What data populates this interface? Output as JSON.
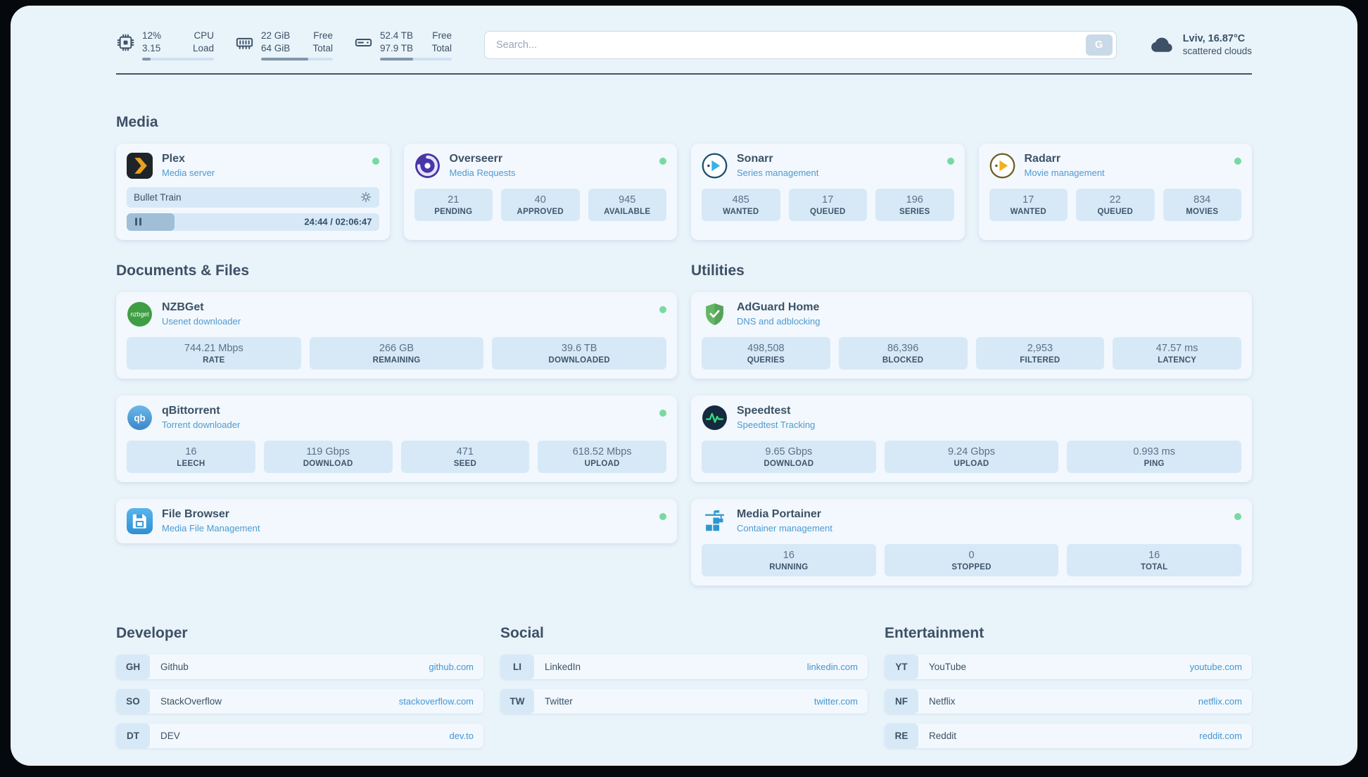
{
  "theme": {
    "background": "#e9f3fa",
    "card": "#f2f8fd",
    "tile": "#d7e9f7",
    "accent": "#4f9ad2",
    "text": "#3c5166",
    "online_dot": "#78d9a1"
  },
  "icons": {
    "cpu": "cpu-chip-icon",
    "memory": "ram-icon",
    "disk": "hard-drive-icon",
    "weather": "cloud-icon",
    "settings": "gear-icon",
    "playback": "pause-icon",
    "status": "status-dot"
  },
  "topbar": {
    "cpu": {
      "value1": "12%",
      "label1": "CPU",
      "value2": "3.15",
      "label2": "Load",
      "used_percent": 12
    },
    "memory": {
      "value1": "22 GiB",
      "label1": "Free",
      "value2": "64 GiB",
      "label2": "Total",
      "used_percent": 66
    },
    "disk": {
      "value1": "52.4 TB",
      "label1": "Free",
      "value2": "97.9 TB",
      "label2": "Total",
      "used_percent": 46
    },
    "search": {
      "placeholder": "Search...",
      "provider": "G"
    },
    "weather": {
      "location": "Lviv, 16.87°C",
      "condition": "scattered clouds"
    }
  },
  "sections": {
    "media": {
      "heading": "Media",
      "plex": {
        "title": "Plex",
        "subtitle": "Media server",
        "online": true,
        "now_playing": {
          "title": "Bullet Train",
          "time": "24:44 / 02:06:47",
          "progress_percent": 19
        }
      },
      "overseerr": {
        "title": "Overseerr",
        "subtitle": "Media Requests",
        "online": true,
        "stats": [
          {
            "value": "21",
            "label": "PENDING"
          },
          {
            "value": "40",
            "label": "APPROVED"
          },
          {
            "value": "945",
            "label": "AVAILABLE"
          }
        ]
      },
      "sonarr": {
        "title": "Sonarr",
        "subtitle": "Series management",
        "online": true,
        "stats": [
          {
            "value": "485",
            "label": "WANTED"
          },
          {
            "value": "17",
            "label": "QUEUED"
          },
          {
            "value": "196",
            "label": "SERIES"
          }
        ]
      },
      "radarr": {
        "title": "Radarr",
        "subtitle": "Movie management",
        "online": true,
        "stats": [
          {
            "value": "17",
            "label": "WANTED"
          },
          {
            "value": "22",
            "label": "QUEUED"
          },
          {
            "value": "834",
            "label": "MOVIES"
          }
        ]
      }
    },
    "documents": {
      "heading": "Documents & Files",
      "nzbget": {
        "title": "NZBGet",
        "subtitle": "Usenet downloader",
        "online": true,
        "stats": [
          {
            "value": "744.21 Mbps",
            "label": "RATE"
          },
          {
            "value": "266 GB",
            "label": "REMAINING"
          },
          {
            "value": "39.6 TB",
            "label": "DOWNLOADED"
          }
        ]
      },
      "qbittorrent": {
        "title": "qBittorrent",
        "subtitle": "Torrent downloader",
        "online": true,
        "stats": [
          {
            "value": "16",
            "label": "LEECH"
          },
          {
            "value": "119 Gbps",
            "label": "DOWNLOAD"
          },
          {
            "value": "471",
            "label": "SEED"
          },
          {
            "value": "618.52 Mbps",
            "label": "UPLOAD"
          }
        ]
      },
      "filebrowser": {
        "title": "File Browser",
        "subtitle": "Media File Management",
        "online": true
      }
    },
    "utilities": {
      "heading": "Utilities",
      "adguard": {
        "title": "AdGuard Home",
        "subtitle": "DNS and adblocking",
        "stats": [
          {
            "value": "498,508",
            "label": "QUERIES"
          },
          {
            "value": "86,396",
            "label": "BLOCKED"
          },
          {
            "value": "2,953",
            "label": "FILTERED"
          },
          {
            "value": "47.57 ms",
            "label": "LATENCY"
          }
        ]
      },
      "speedtest": {
        "title": "Speedtest",
        "subtitle": "Speedtest Tracking",
        "stats": [
          {
            "value": "9.65 Gbps",
            "label": "DOWNLOAD"
          },
          {
            "value": "9.24 Gbps",
            "label": "UPLOAD"
          },
          {
            "value": "0.993 ms",
            "label": "PING"
          }
        ]
      },
      "portainer": {
        "title": "Media Portainer",
        "subtitle": "Container management",
        "online": true,
        "stats": [
          {
            "value": "16",
            "label": "RUNNING"
          },
          {
            "value": "0",
            "label": "STOPPED"
          },
          {
            "value": "16",
            "label": "TOTAL"
          }
        ]
      }
    }
  },
  "bookmarks": [
    {
      "heading": "Developer",
      "items": [
        {
          "abbr": "GH",
          "name": "Github",
          "url": "github.com"
        },
        {
          "abbr": "SO",
          "name": "StackOverflow",
          "url": "stackoverflow.com"
        },
        {
          "abbr": "DT",
          "name": "DEV",
          "url": "dev.to"
        }
      ]
    },
    {
      "heading": "Social",
      "items": [
        {
          "abbr": "LI",
          "name": "LinkedIn",
          "url": "linkedin.com"
        },
        {
          "abbr": "TW",
          "name": "Twitter",
          "url": "twitter.com"
        }
      ]
    },
    {
      "heading": "Entertainment",
      "items": [
        {
          "abbr": "YT",
          "name": "YouTube",
          "url": "youtube.com"
        },
        {
          "abbr": "NF",
          "name": "Netflix",
          "url": "netflix.com"
        },
        {
          "abbr": "RE",
          "name": "Reddit",
          "url": "reddit.com"
        }
      ]
    }
  ]
}
